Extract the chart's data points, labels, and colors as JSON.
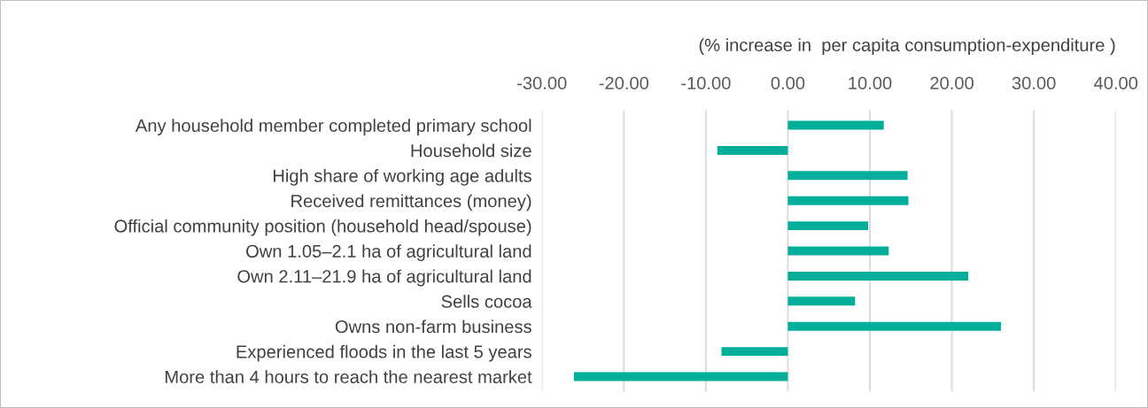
{
  "chart_data": {
    "type": "bar",
    "orientation": "horizontal",
    "title": "(% increase in  per capita consumption-expenditure )",
    "categories": [
      "Any household member completed primary school",
      "Household size",
      "High share of working age adults",
      "Received remittances (money)",
      "Official community position (household head/spouse)",
      "Own 1.05–2.1 ha of agricultural land",
      "Own 2.11–21.9 ha of agricultural land",
      "Sells cocoa",
      "Owns non-farm business",
      "Experienced floods in the last 5 years",
      "More than 4 hours to reach the nearest market"
    ],
    "values": [
      11.7,
      -8.6,
      14.6,
      14.7,
      9.8,
      12.3,
      22.0,
      8.2,
      26.0,
      -8.1,
      -26.1
    ],
    "color": "#00ae9a",
    "xlim": [
      -30,
      40
    ],
    "xticks": [
      {
        "value": -30,
        "label": "-30.00"
      },
      {
        "value": -20,
        "label": "-20.00"
      },
      {
        "value": -10,
        "label": "-10.00"
      },
      {
        "value": 0,
        "label": "0.00"
      },
      {
        "value": 10,
        "label": "10.00"
      },
      {
        "value": 20,
        "label": "20.00"
      },
      {
        "value": 30,
        "label": "30.00"
      },
      {
        "value": 40,
        "label": "40.00"
      }
    ],
    "grid": "x"
  }
}
